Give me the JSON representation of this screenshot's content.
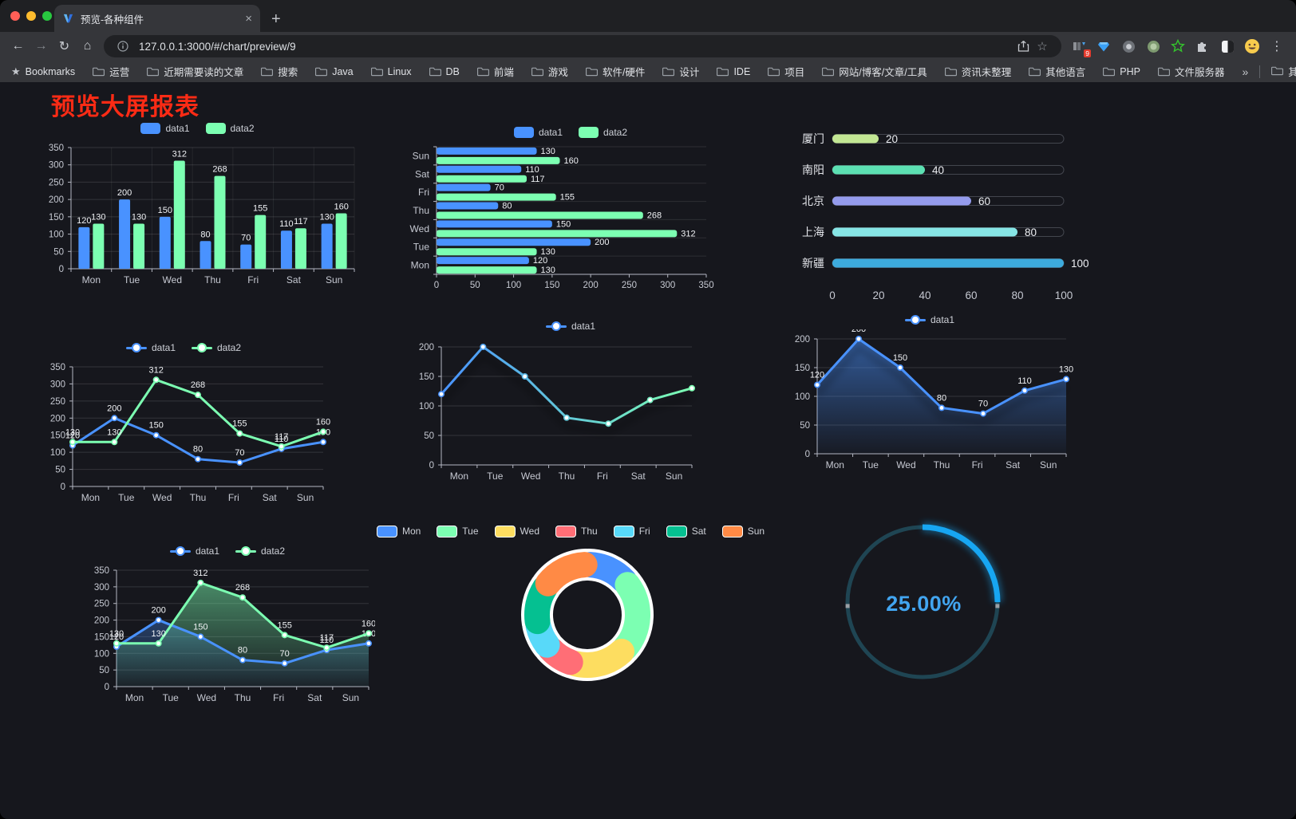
{
  "browser": {
    "tab": {
      "title": "预览-各种组件",
      "close_label": "×",
      "new_tab_label": "+"
    },
    "url": "127.0.0.1:3000/#/chart/preview/9",
    "bookmarks_label": "Bookmarks",
    "bookmark_folders": [
      "运营",
      "近期需要读的文章",
      "搜索",
      "Java",
      "Linux",
      "DB",
      "前端",
      "游戏",
      "软件/硬件",
      "设计",
      "IDE",
      "项目",
      "网站/博客/文章/工具",
      "资讯未整理",
      "其他语言",
      "PHP",
      "文件服务器"
    ],
    "bookmarks_overflow": "»",
    "other_bookmarks": "其他书签",
    "extension_badge": "9"
  },
  "page": {
    "title": "预览大屏报表",
    "title_color": "#fb2b15"
  },
  "colors": {
    "palette": [
      "#4992ff",
      "#7cffb2",
      "#fddd60",
      "#ff6e76",
      "#58d9f9",
      "#05c091",
      "#ff8a45"
    ],
    "background": "#16171d",
    "axis": "#b4b7c2",
    "grid": "rgba(255,255,255,0.13)"
  },
  "chart_data": [
    {
      "id": "c1",
      "type": "bar",
      "legend_kind": "rect",
      "categories": [
        "Mon",
        "Tue",
        "Wed",
        "Thu",
        "Fri",
        "Sat",
        "Sun"
      ],
      "series": [
        {
          "name": "data1",
          "color": "#4992ff",
          "values": [
            120,
            200,
            150,
            80,
            70,
            110,
            130
          ]
        },
        {
          "name": "data2",
          "color": "#7cffb2",
          "values": [
            130,
            130,
            312,
            268,
            155,
            117,
            160
          ]
        }
      ],
      "ylim": [
        0,
        350
      ],
      "ytick_step": 50,
      "grid": true
    },
    {
      "id": "c2",
      "type": "hbar",
      "legend_kind": "rect",
      "categories": [
        "Mon",
        "Tue",
        "Wed",
        "Thu",
        "Fri",
        "Sat",
        "Sun"
      ],
      "series": [
        {
          "name": "data1",
          "color": "#4992ff",
          "values": [
            120,
            200,
            150,
            80,
            70,
            110,
            130
          ]
        },
        {
          "name": "data2",
          "color": "#7cffb2",
          "values": [
            130,
            130,
            312,
            268,
            155,
            117,
            160
          ]
        }
      ],
      "xlim": [
        0,
        350
      ],
      "xtick_step": 50,
      "grid": true
    },
    {
      "id": "c3",
      "type": "capsule",
      "categories": [
        "厦门",
        "南阳",
        "北京",
        "上海",
        "新疆"
      ],
      "values": [
        20,
        40,
        60,
        80,
        100
      ],
      "colors": [
        "#c3e794",
        "#5ce0b2",
        "#949bec",
        "#86e5e5",
        "#3dabdd"
      ],
      "xlim": [
        0,
        100
      ],
      "xticks": [
        0,
        20,
        40,
        60,
        80,
        100
      ]
    },
    {
      "id": "c4",
      "type": "line",
      "legend_kind": "line",
      "labels": true,
      "categories": [
        "Mon",
        "Tue",
        "Wed",
        "Thu",
        "Fri",
        "Sat",
        "Sun"
      ],
      "series": [
        {
          "name": "data1",
          "color": "#4992ff",
          "values": [
            120,
            200,
            150,
            80,
            70,
            110,
            130
          ]
        },
        {
          "name": "data2",
          "color": "#7cffb2",
          "values": [
            130,
            130,
            312,
            268,
            155,
            117,
            160
          ]
        }
      ],
      "ylim": [
        0,
        350
      ],
      "ytick_step": 50
    },
    {
      "id": "c5",
      "type": "line",
      "legend_kind": "line",
      "labels": false,
      "shadow": true,
      "categories": [
        "Mon",
        "Tue",
        "Wed",
        "Thu",
        "Fri",
        "Sat",
        "Sun"
      ],
      "series": [
        {
          "name": "data1",
          "color": "#4992ff",
          "gradient": [
            "#4992ff",
            "#7cffb2"
          ],
          "values": [
            120,
            200,
            150,
            80,
            70,
            110,
            130
          ]
        }
      ],
      "ylim": [
        0,
        200
      ],
      "ytick_step": 50
    },
    {
      "id": "c6",
      "type": "line",
      "legend_kind": "line",
      "labels": true,
      "shadow": true,
      "categories": [
        "Mon",
        "Tue",
        "Wed",
        "Thu",
        "Fri",
        "Sat",
        "Sun"
      ],
      "series": [
        {
          "name": "data1",
          "color": "#4992ff",
          "area": true,
          "values": [
            120,
            200,
            150,
            80,
            70,
            110,
            130
          ]
        }
      ],
      "ylim": [
        0,
        200
      ],
      "ytick_step": 50
    },
    {
      "id": "c7",
      "type": "line",
      "legend_kind": "line",
      "labels": true,
      "categories": [
        "Mon",
        "Tue",
        "Wed",
        "Thu",
        "Fri",
        "Sat",
        "Sun"
      ],
      "series": [
        {
          "name": "data1",
          "color": "#4992ff",
          "area": true,
          "values": [
            120,
            200,
            150,
            80,
            70,
            110,
            130
          ]
        },
        {
          "name": "data2",
          "color": "#7cffb2",
          "area": true,
          "values": [
            130,
            130,
            312,
            268,
            155,
            117,
            160
          ]
        }
      ],
      "ylim": [
        0,
        350
      ],
      "ytick_step": 50
    },
    {
      "id": "c8",
      "type": "pie",
      "legend_kind": "chip",
      "categories": [
        "Mon",
        "Tue",
        "Wed",
        "Thu",
        "Fri",
        "Sat",
        "Sun"
      ],
      "values": [
        120,
        200,
        150,
        80,
        70,
        110,
        130
      ],
      "colors": [
        "#4992ff",
        "#7cffb2",
        "#fddd60",
        "#ff6e76",
        "#58d9f9",
        "#05c091",
        "#ff8a45"
      ],
      "inner_radius": 46,
      "outer_radius": 80
    },
    {
      "id": "c9",
      "type": "gauge",
      "percent": 25,
      "label": "25.00%",
      "track_color": "#1f4553",
      "progress_color": "#17a6f2",
      "text_color": "#42a5f0"
    }
  ]
}
